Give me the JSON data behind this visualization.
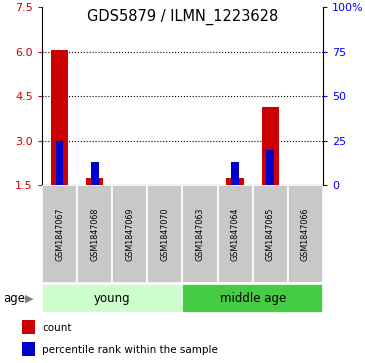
{
  "title": "GDS5879 / ILMN_1223628",
  "samples": [
    "GSM1847067",
    "GSM1847068",
    "GSM1847069",
    "GSM1847070",
    "GSM1847063",
    "GSM1847064",
    "GSM1847065",
    "GSM1847066"
  ],
  "red_values": [
    6.05,
    1.75,
    1.5,
    1.5,
    1.5,
    1.75,
    4.12,
    1.5
  ],
  "blue_values": [
    25.0,
    13.0,
    0.0,
    0.0,
    0.0,
    13.0,
    20.0,
    0.0
  ],
  "ylim_left": [
    1.5,
    7.5
  ],
  "ylim_right": [
    0,
    100
  ],
  "yticks_left": [
    1.5,
    3.0,
    4.5,
    6.0,
    7.5
  ],
  "yticks_right": [
    0,
    25,
    50,
    75,
    100
  ],
  "ytick_labels_right": [
    "0",
    "25",
    "50",
    "75",
    "100%"
  ],
  "groups": [
    {
      "label": "young",
      "indices": [
        0,
        1,
        2,
        3
      ],
      "color": "#CCFFCC"
    },
    {
      "label": "middle age",
      "indices": [
        4,
        5,
        6,
        7
      ],
      "color": "#44CC44"
    }
  ],
  "red_color": "#CC0000",
  "blue_color": "#0000CC",
  "sample_box_color": "#C8C8C8",
  "age_label": "age",
  "legend_items": [
    {
      "color": "#CC0000",
      "label": "count"
    },
    {
      "color": "#0000CC",
      "label": "percentile rank within the sample"
    }
  ]
}
